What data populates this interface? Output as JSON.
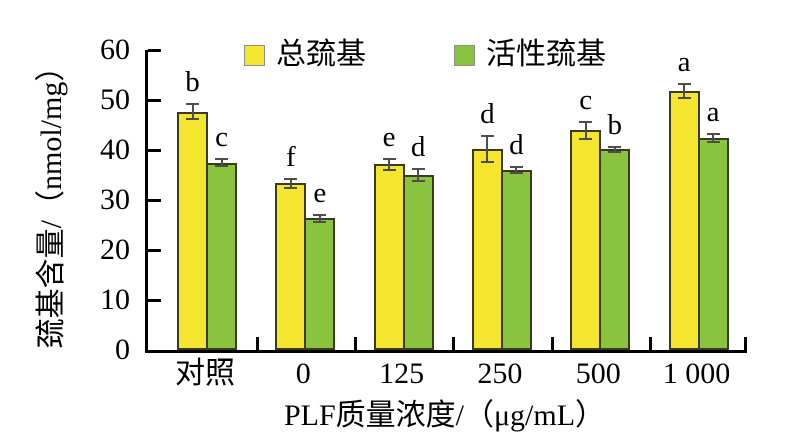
{
  "chart_data": {
    "type": "bar",
    "title": "",
    "xlabel": "PLF质量浓度/（μg/mL）",
    "ylabel": "巯基含量/（nmol/mg）",
    "categories": [
      "对照",
      "0",
      "125",
      "250",
      "500",
      "1 000"
    ],
    "ylim": [
      0,
      60
    ],
    "yticks": [
      0,
      10,
      20,
      30,
      40,
      50,
      60
    ],
    "grid": false,
    "legend_position": "top-inside",
    "axis_color": "#000000",
    "error_bar_color": "#4d4d4d",
    "series": [
      {
        "name": "总巯基",
        "color": "#F4E52F",
        "values": [
          47.7,
          33.4,
          37.2,
          40.2,
          44.0,
          51.8
        ],
        "errors": [
          1.7,
          1.1,
          1.3,
          2.8,
          1.9,
          1.6
        ],
        "sig_letters": [
          "b",
          "f",
          "e",
          "d",
          "c",
          "a"
        ]
      },
      {
        "name": "活性巯基",
        "color": "#8AC43E",
        "values": [
          37.5,
          26.4,
          35.1,
          36.0,
          40.2,
          42.5
        ],
        "errors": [
          0.9,
          0.9,
          1.4,
          0.8,
          0.7,
          1.0
        ],
        "sig_letters": [
          "c",
          "e",
          "d",
          "d",
          "b",
          "a"
        ]
      }
    ]
  }
}
